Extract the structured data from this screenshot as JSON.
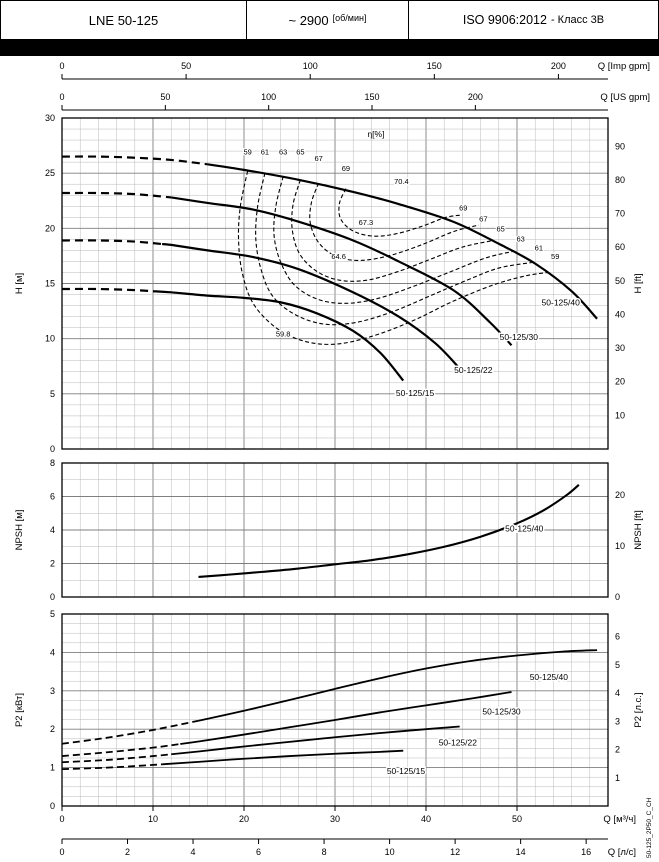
{
  "header": {
    "model": "LNE 50-125",
    "speed": "~ 2900",
    "speed_unit": "[об/мин]",
    "standard": "ISO 9906:2012",
    "standard_class": "- Класс 3В"
  },
  "side_code": "50-125_2P50_C_CH",
  "chart_data": {
    "type": "line",
    "x_axes": {
      "m3h": {
        "label": "Q [м³/ч]",
        "min": 0,
        "max": 60,
        "minor_step": 2,
        "major_step": 10,
        "ticks": [
          0,
          10,
          20,
          30,
          40,
          50
        ]
      },
      "ls": {
        "label": "Q [л/с]",
        "to_m3h": 3.6,
        "ticks": [
          0,
          2,
          4,
          6,
          8,
          10,
          12,
          14,
          16
        ]
      },
      "imp_gpm": {
        "label": "Q [Imp gpm]",
        "to_m3h": 0.27276,
        "ticks": [
          0,
          50,
          100,
          150,
          200
        ]
      },
      "us_gpm": {
        "label": "Q [US gpm]",
        "to_m3h": 0.22712,
        "ticks": [
          0,
          50,
          100,
          150,
          200
        ]
      }
    },
    "head_chart": {
      "y_left": {
        "label": "H [м]",
        "min": 0,
        "max": 30,
        "minor_step": 1,
        "major_step": 5,
        "ticks": [
          0,
          5,
          10,
          15,
          20,
          25,
          30
        ]
      },
      "y_right": {
        "label": "H [ft]",
        "to_left": 0.3048,
        "ticks": [
          10,
          20,
          30,
          40,
          50,
          60,
          70,
          80,
          90
        ]
      },
      "eta_title": {
        "text": "η[%]",
        "q": 34.5,
        "v": 28.3
      },
      "curves": [
        {
          "name": "50-125/40",
          "dash_until": 16,
          "label": {
            "q": 54.8,
            "v": 13.0
          },
          "points": [
            [
              0,
              26.5
            ],
            [
              4,
              26.5
            ],
            [
              8,
              26.4
            ],
            [
              12,
              26.2
            ],
            [
              16,
              25.8
            ],
            [
              20,
              25.3
            ],
            [
              26,
              24.4
            ],
            [
              32,
              23.3
            ],
            [
              37,
              22.2
            ],
            [
              43,
              20.6
            ],
            [
              48,
              18.6
            ],
            [
              52,
              16.8
            ],
            [
              56,
              14.3
            ],
            [
              58.8,
              11.8
            ]
          ]
        },
        {
          "name": "50-125/30",
          "dash_until": 12,
          "label": {
            "q": 50.2,
            "v": 9.9
          },
          "points": [
            [
              0,
              23.2
            ],
            [
              4,
              23.2
            ],
            [
              8,
              23.1
            ],
            [
              12,
              22.8
            ],
            [
              16,
              22.3
            ],
            [
              21,
              21.7
            ],
            [
              26,
              20.6
            ],
            [
              32,
              18.9
            ],
            [
              37,
              17.0
            ],
            [
              43,
              14.4
            ],
            [
              47,
              11.5
            ],
            [
              49.4,
              9.4
            ]
          ]
        },
        {
          "name": "50-125/22",
          "dash_until": 11,
          "label": {
            "q": 45.2,
            "v": 6.9
          },
          "points": [
            [
              0,
              18.9
            ],
            [
              4,
              18.9
            ],
            [
              8,
              18.8
            ],
            [
              12,
              18.5
            ],
            [
              16,
              18.0
            ],
            [
              21,
              17.4
            ],
            [
              26,
              16.3
            ],
            [
              32,
              14.2
            ],
            [
              37,
              12.0
            ],
            [
              41,
              9.6
            ],
            [
              43.7,
              7.3
            ]
          ]
        },
        {
          "name": "50-125/15",
          "dash_until": 10,
          "label": {
            "q": 38.8,
            "v": 4.8
          },
          "points": [
            [
              0,
              14.5
            ],
            [
              4,
              14.5
            ],
            [
              8,
              14.4
            ],
            [
              12,
              14.2
            ],
            [
              16,
              13.9
            ],
            [
              20,
              13.7
            ],
            [
              24,
              13.3
            ],
            [
              28,
              12.3
            ],
            [
              32,
              10.7
            ],
            [
              35,
              8.7
            ],
            [
              37.5,
              6.2
            ]
          ]
        }
      ],
      "efficiency_contours": [
        {
          "value": "59",
          "top_label": {
            "q": 20.4,
            "v": 26.7
          },
          "right_label": {
            "q": 54.2,
            "v": 17.2
          },
          "points": [
            [
              20.4,
              25.2
            ],
            [
              19.6,
              22.0
            ],
            [
              19.4,
              19.0
            ],
            [
              19.8,
              16.0
            ],
            [
              21.0,
              13.2
            ],
            [
              23.5,
              11.0
            ],
            [
              26.5,
              9.8
            ],
            [
              30.0,
              9.5
            ],
            [
              34.0,
              10.2
            ],
            [
              38.5,
              11.6
            ],
            [
              43.0,
              13.4
            ],
            [
              47.5,
              14.9
            ],
            [
              51.0,
              15.7
            ],
            [
              53.4,
              16.0
            ]
          ]
        },
        {
          "value": "61",
          "top_label": {
            "q": 22.3,
            "v": 26.7
          },
          "right_label": {
            "q": 52.4,
            "v": 18.0
          },
          "points": [
            [
              22.3,
              25.0
            ],
            [
              21.5,
              22.0
            ],
            [
              21.3,
              19.0
            ],
            [
              21.9,
              16.2
            ],
            [
              23.2,
              13.8
            ],
            [
              25.8,
              12.1
            ],
            [
              29.0,
              11.3
            ],
            [
              32.5,
              11.5
            ],
            [
              36.5,
              12.5
            ],
            [
              40.5,
              13.9
            ],
            [
              44.5,
              15.3
            ],
            [
              48.0,
              16.4
            ],
            [
              51.6,
              16.9
            ]
          ]
        },
        {
          "value": "63",
          "top_label": {
            "q": 24.3,
            "v": 26.7
          },
          "right_label": {
            "q": 50.4,
            "v": 18.8
          },
          "points": [
            [
              24.3,
              24.7
            ],
            [
              23.5,
              22.0
            ],
            [
              23.3,
              19.4
            ],
            [
              24.0,
              17.0
            ],
            [
              25.5,
              14.9
            ],
            [
              28.0,
              13.6
            ],
            [
              31.0,
              13.2
            ],
            [
              34.5,
              13.6
            ],
            [
              38.5,
              14.7
            ],
            [
              42.5,
              16.0
            ],
            [
              46.5,
              17.3
            ],
            [
              49.5,
              17.9
            ]
          ]
        },
        {
          "value": "65",
          "top_label": {
            "q": 26.2,
            "v": 26.7
          },
          "right_label": {
            "q": 48.2,
            "v": 19.7
          },
          "points": [
            [
              26.2,
              24.4
            ],
            [
              25.4,
              22.2
            ],
            [
              25.3,
              19.9
            ],
            [
              26.1,
              17.7
            ],
            [
              28.0,
              16.1
            ],
            [
              30.5,
              15.3
            ],
            [
              33.5,
              15.3
            ],
            [
              37.0,
              16.1
            ],
            [
              40.5,
              17.2
            ],
            [
              44.0,
              18.3
            ],
            [
              47.4,
              18.9
            ]
          ]
        },
        {
          "value": "67",
          "top_label": {
            "q": 28.2,
            "v": 26.1
          },
          "right_label": {
            "q": 46.3,
            "v": 20.6
          },
          "points": [
            [
              28.2,
              24.1
            ],
            [
              27.4,
              22.3
            ],
            [
              27.3,
              20.4
            ],
            [
              28.3,
              18.6
            ],
            [
              30.3,
              17.4
            ],
            [
              33.0,
              17.1
            ],
            [
              36.3,
              17.6
            ],
            [
              39.8,
              18.6
            ],
            [
              43.0,
              19.7
            ],
            [
              45.8,
              20.3
            ]
          ]
        },
        {
          "value": "69",
          "top_label": {
            "q": 31.2,
            "v": 25.2
          },
          "right_label": {
            "q": 44.1,
            "v": 21.6
          },
          "points": [
            [
              31.2,
              23.6
            ],
            [
              30.5,
              22.3
            ],
            [
              30.6,
              20.9
            ],
            [
              31.9,
              19.8
            ],
            [
              34.1,
              19.3
            ],
            [
              36.7,
              19.5
            ],
            [
              39.6,
              20.2
            ],
            [
              42.2,
              21.0
            ],
            [
              44.0,
              21.2
            ]
          ]
        }
      ],
      "efficiency_point_labels": [
        {
          "text": "70.4",
          "q": 37.3,
          "v": 24.0
        },
        {
          "text": "67.3",
          "q": 33.4,
          "v": 20.3
        },
        {
          "text": "64.6",
          "q": 30.4,
          "v": 17.2
        },
        {
          "text": "59.8",
          "q": 24.3,
          "v": 10.2
        }
      ]
    },
    "npsh_chart": {
      "y_left": {
        "label": "NPSH [м]",
        "min": 0,
        "max": 8,
        "minor_step": 1,
        "major_step": 2,
        "ticks": [
          0,
          2,
          4,
          6,
          8
        ]
      },
      "y_right": {
        "label": "NPSH [ft]",
        "to_left": 0.3048,
        "ticks": [
          0,
          10,
          20
        ]
      },
      "curves": [
        {
          "name": "50-125/40",
          "label": {
            "q": 50.8,
            "v": 3.9
          },
          "points": [
            [
              15,
              1.2
            ],
            [
              18,
              1.32
            ],
            [
              22,
              1.5
            ],
            [
              26,
              1.7
            ],
            [
              30,
              1.95
            ],
            [
              34,
              2.2
            ],
            [
              38,
              2.55
            ],
            [
              42,
              3.0
            ],
            [
              46,
              3.6
            ],
            [
              50,
              4.4
            ],
            [
              53,
              5.2
            ],
            [
              55.5,
              6.1
            ],
            [
              56.8,
              6.7
            ]
          ]
        }
      ]
    },
    "power_chart": {
      "y_left": {
        "label": "P2 [кВт]",
        "min": 0,
        "max": 5,
        "minor_step": 0.25,
        "major_step": 1,
        "ticks": [
          0,
          1,
          2,
          3,
          4,
          5
        ]
      },
      "y_right": {
        "label": "P2 [л.с.]",
        "to_left": 0.7355,
        "ticks": [
          1,
          2,
          3,
          4,
          5,
          6
        ]
      },
      "curves": [
        {
          "name": "50-125/40",
          "dash_until": 15,
          "label": {
            "q": 53.5,
            "v": 3.28
          },
          "points": [
            [
              0,
              1.62
            ],
            [
              5,
              1.78
            ],
            [
              10,
              1.98
            ],
            [
              15,
              2.22
            ],
            [
              20,
              2.48
            ],
            [
              25,
              2.76
            ],
            [
              30,
              3.05
            ],
            [
              35,
              3.33
            ],
            [
              40,
              3.58
            ],
            [
              45,
              3.78
            ],
            [
              50,
              3.92
            ],
            [
              55,
              4.02
            ],
            [
              58.8,
              4.06
            ]
          ]
        },
        {
          "name": "50-125/30",
          "dash_until": 13,
          "label": {
            "q": 48.3,
            "v": 2.38
          },
          "points": [
            [
              0,
              1.3
            ],
            [
              5,
              1.4
            ],
            [
              10,
              1.52
            ],
            [
              15,
              1.68
            ],
            [
              20,
              1.86
            ],
            [
              25,
              2.05
            ],
            [
              30,
              2.24
            ],
            [
              35,
              2.44
            ],
            [
              40,
              2.62
            ],
            [
              45,
              2.8
            ],
            [
              49.4,
              2.97
            ]
          ]
        },
        {
          "name": "50-125/22",
          "dash_until": 12,
          "label": {
            "q": 43.5,
            "v": 1.58
          },
          "points": [
            [
              0,
              1.14
            ],
            [
              5,
              1.2
            ],
            [
              10,
              1.3
            ],
            [
              15,
              1.42
            ],
            [
              20,
              1.55
            ],
            [
              25,
              1.67
            ],
            [
              30,
              1.79
            ],
            [
              35,
              1.9
            ],
            [
              40,
              2.0
            ],
            [
              43.7,
              2.07
            ]
          ]
        },
        {
          "name": "50-125/15",
          "dash_until": 11,
          "label": {
            "q": 37.8,
            "v": 0.83
          },
          "points": [
            [
              0,
              0.96
            ],
            [
              5,
              1.0
            ],
            [
              10,
              1.07
            ],
            [
              15,
              1.15
            ],
            [
              20,
              1.23
            ],
            [
              25,
              1.3
            ],
            [
              30,
              1.36
            ],
            [
              35,
              1.41
            ],
            [
              37.5,
              1.44
            ]
          ]
        }
      ]
    }
  }
}
